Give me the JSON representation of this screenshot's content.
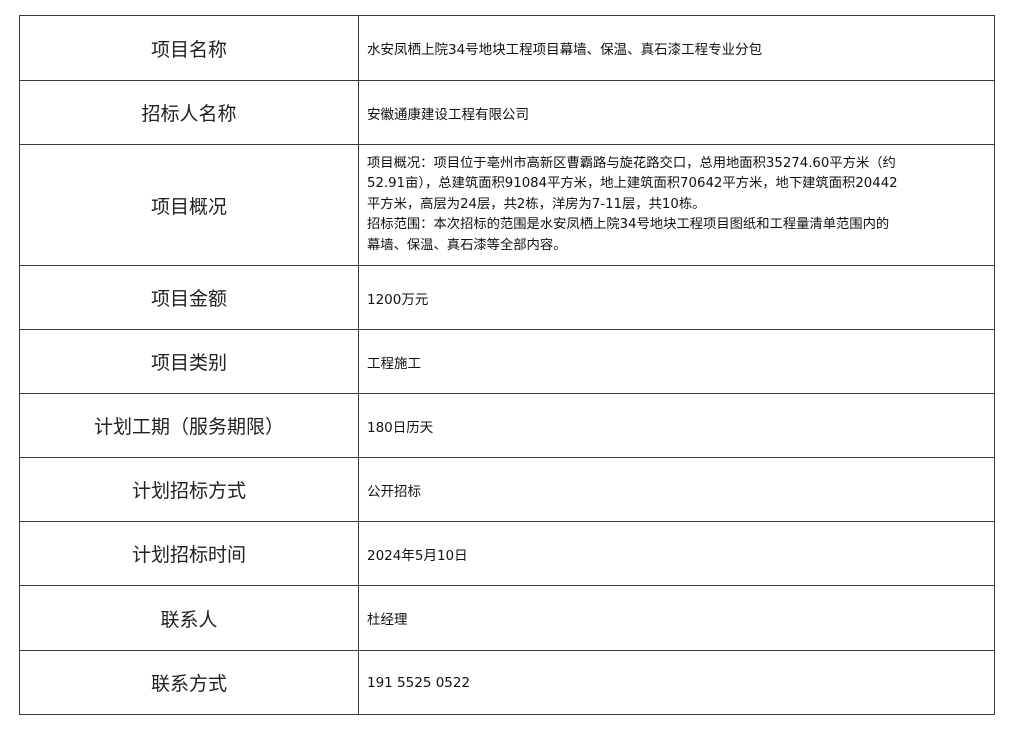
{
  "rows": [
    {
      "label": "项目名称",
      "value": "水安凤栖上院34号地块工程项目幕墙、保温、真石漆工程专业分包"
    },
    {
      "label": "招标人名称",
      "value": "安徽通康建设工程有限公司"
    },
    {
      "label": "项目概况",
      "lines": [
        "项目概况：项目位于亳州市高新区曹霸路与旋花路交口，总用地面积35274.60平方米（约",
        "52.91亩），总建筑面积91084平方米，地上建筑面积70642平方米，地下建筑面积20442",
        "平方米，高层为24层，共2栋，洋房为7-11层，共10栋。",
        "招标范围：本次招标的范围是水安凤栖上院34号地块工程项目图纸和工程量清单范围内的",
        "幕墙、保温、真石漆等全部内容。"
      ]
    },
    {
      "label": "项目金额",
      "value": "1200万元"
    },
    {
      "label": "项目类别",
      "value": "工程施工"
    },
    {
      "label": "计划工期（服务期限）",
      "value": "180日历天"
    },
    {
      "label": "计划招标方式",
      "value": "公开招标"
    },
    {
      "label": "计划招标时间",
      "value": "2024年5月10日"
    },
    {
      "label": "联系人",
      "value": "杜经理"
    },
    {
      "label": "联系方式",
      "value": "191 5525 0522"
    }
  ]
}
